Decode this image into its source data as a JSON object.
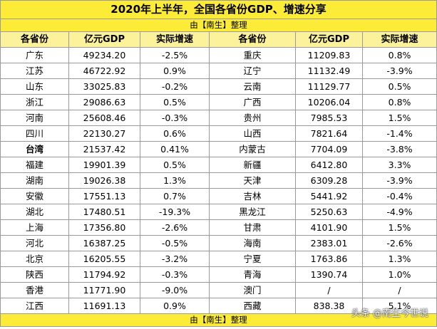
{
  "title": "2020年上半年，全国各省份GDP、增速分享",
  "subtitle": "由【南生】整理",
  "headers": [
    "各省份",
    "亿元GDP",
    "实际增速",
    "各省份",
    "亿元GDP",
    "实际增速"
  ],
  "rows": [
    [
      [
        "广东",
        "49234.20",
        "-2.5%"
      ],
      [
        "重庆",
        "11209.83",
        "0.8%"
      ]
    ],
    [
      [
        "江苏",
        "46722.92",
        "0.9%"
      ],
      [
        "辽宁",
        "11132.49",
        "-3.9%"
      ]
    ],
    [
      [
        "山东",
        "33025.83",
        "-0.2%"
      ],
      [
        "云南",
        "11129.77",
        "0.5%"
      ]
    ],
    [
      [
        "浙江",
        "29086.63",
        "0.5%"
      ],
      [
        "广西",
        "10206.04",
        "0.8%"
      ]
    ],
    [
      [
        "河南",
        "25608.46",
        "-0.3%"
      ],
      [
        "贵州",
        "7985.53",
        "1.5%"
      ]
    ],
    [
      [
        "四川",
        "22130.27",
        "0.6%"
      ],
      [
        "山西",
        "7821.64",
        "-1.4%"
      ]
    ],
    [
      [
        "台湾",
        "21537.42",
        "0.41%"
      ],
      [
        "内蒙古",
        "7704.09",
        "-3.8%"
      ]
    ],
    [
      [
        "福建",
        "19901.39",
        "0.5%"
      ],
      [
        "新疆",
        "6412.80",
        "3.3%"
      ]
    ],
    [
      [
        "湖南",
        "19026.38",
        "1.3%"
      ],
      [
        "天津",
        "6309.28",
        "-3.9%"
      ]
    ],
    [
      [
        "安徽",
        "17551.13",
        "0.7%"
      ],
      [
        "吉林",
        "5441.92",
        "-0.4%"
      ]
    ],
    [
      [
        "湖北",
        "17480.51",
        "-19.3%"
      ],
      [
        "黑龙江",
        "5250.63",
        "-4.9%"
      ]
    ],
    [
      [
        "上海",
        "17356.80",
        "-2.6%"
      ],
      [
        "甘肃",
        "4101.90",
        "1.5%"
      ]
    ],
    [
      [
        "河北",
        "16387.25",
        "-0.5%"
      ],
      [
        "海南",
        "2383.01",
        "-2.6%"
      ]
    ],
    [
      [
        "北京",
        "16205.55",
        "-3.2%"
      ],
      [
        "宁夏",
        "1763.86",
        "1.3%"
      ]
    ],
    [
      [
        "陕西",
        "11794.92",
        "-0.3%"
      ],
      [
        "青海",
        "1390.74",
        "1.0%"
      ]
    ],
    [
      [
        "香港",
        "11771.90",
        "-9.0%"
      ],
      [
        "澳门",
        "/",
        "/"
      ]
    ],
    [
      [
        "江西",
        "11691.13",
        "0.9%"
      ],
      [
        "西藏",
        "838.38",
        "5.1%"
      ]
    ]
  ],
  "bold_province": "台湾",
  "footer": "由【南生】整理",
  "watermark": "头条 @南生今世说",
  "colors": {
    "title_bg": "#fcec38",
    "header_bg": "#fdf29c",
    "border": "#9a9a9a"
  }
}
